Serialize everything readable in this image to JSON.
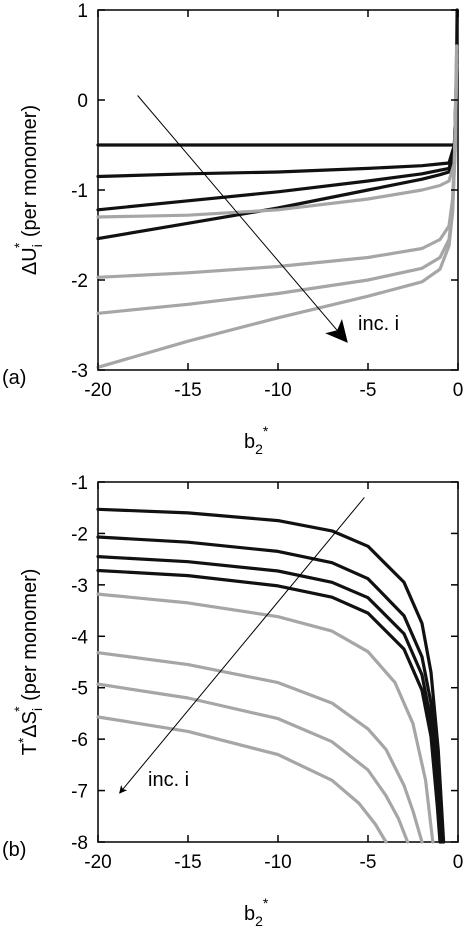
{
  "chart_data": [
    {
      "panel_label": "(a)",
      "type": "line",
      "xlabel": "b2*",
      "ylabel": "ΔUi* (per monomer)",
      "xlim": [
        -20,
        0
      ],
      "ylim": [
        -3,
        1
      ],
      "xticks": [
        "-20",
        "-15",
        "-10",
        "-5",
        "0"
      ],
      "yticks": [
        "-3",
        "-2",
        "-1",
        "0",
        "1"
      ],
      "xtick_values": [
        -20,
        -15,
        -10,
        -5,
        0
      ],
      "ytick_values": [
        -3,
        -2,
        -1,
        0,
        1
      ],
      "annotation": "inc. i",
      "arrow": {
        "from": [
          -17.8,
          0.05
        ],
        "to": [
          -6.2,
          -2.68
        ]
      },
      "colors": {
        "dark": "#111111",
        "light": "#a6a6a6"
      },
      "series": [
        {
          "color": "dark",
          "x": [
            -20,
            -10,
            -5,
            -2,
            -1,
            -0.5,
            -0.2,
            -0.1,
            -0.05
          ],
          "y": [
            -0.5,
            -0.5,
            -0.5,
            -0.5,
            -0.5,
            -0.5,
            -0.5,
            0.0,
            1.0
          ]
        },
        {
          "color": "dark",
          "x": [
            -20,
            -15,
            -10,
            -5,
            -2,
            -1,
            -0.5,
            -0.2,
            -0.08
          ],
          "y": [
            -0.85,
            -0.82,
            -0.8,
            -0.76,
            -0.73,
            -0.71,
            -0.7,
            -0.5,
            0.2
          ]
        },
        {
          "color": "dark",
          "x": [
            -20,
            -15,
            -10,
            -5,
            -2,
            -1,
            -0.5,
            -0.2,
            -0.08
          ],
          "y": [
            -1.22,
            -1.12,
            -1.02,
            -0.9,
            -0.82,
            -0.78,
            -0.76,
            -0.55,
            0.3
          ]
        },
        {
          "color": "dark",
          "x": [
            -20,
            -15,
            -10,
            -5,
            -2,
            -1,
            -0.5,
            -0.2,
            -0.08
          ],
          "y": [
            -1.54,
            -1.37,
            -1.2,
            -1.0,
            -0.88,
            -0.83,
            -0.8,
            -0.6,
            0.4
          ]
        },
        {
          "color": "light",
          "x": [
            -20,
            -15,
            -10,
            -5,
            -2,
            -1,
            -0.5,
            -0.2,
            -0.08
          ],
          "y": [
            -1.3,
            -1.28,
            -1.22,
            -1.1,
            -1.0,
            -0.95,
            -0.9,
            -0.7,
            0.6
          ]
        },
        {
          "color": "light",
          "x": [
            -20,
            -15,
            -10,
            -5,
            -2,
            -1,
            -0.5,
            -0.3,
            -0.15,
            -0.07
          ],
          "y": [
            -1.97,
            -1.92,
            -1.85,
            -1.75,
            -1.65,
            -1.55,
            -1.4,
            -1.1,
            -0.4,
            0.6
          ]
        },
        {
          "color": "light",
          "x": [
            -20,
            -15,
            -10,
            -5,
            -2,
            -1,
            -0.5,
            -0.3,
            -0.15,
            -0.07
          ],
          "y": [
            -2.37,
            -2.27,
            -2.15,
            -2.0,
            -1.87,
            -1.75,
            -1.55,
            -1.2,
            -0.5,
            0.5
          ]
        },
        {
          "color": "light",
          "x": [
            -20,
            -15,
            -10,
            -5,
            -2,
            -1,
            -0.5,
            -0.3,
            -0.15,
            -0.07
          ],
          "y": [
            -2.97,
            -2.68,
            -2.42,
            -2.18,
            -2.02,
            -1.88,
            -1.62,
            -1.25,
            -0.5,
            0.4
          ]
        }
      ]
    },
    {
      "panel_label": "(b)",
      "type": "line",
      "xlabel": "b2*",
      "ylabel": "T*ΔSi* (per monomer)",
      "xlim": [
        -20,
        0
      ],
      "ylim": [
        -8,
        -1
      ],
      "xticks": [
        "-20",
        "-15",
        "-10",
        "-5",
        "0"
      ],
      "yticks": [
        "-8",
        "-7",
        "-6",
        "-5",
        "-4",
        "-3",
        "-2",
        "-1"
      ],
      "xtick_values": [
        -20,
        -15,
        -10,
        -5,
        0
      ],
      "ytick_values": [
        -8,
        -7,
        -6,
        -5,
        -4,
        -3,
        -2,
        -1
      ],
      "annotation": "inc. i",
      "arrow": {
        "from": [
          -5.2,
          -1.3
        ],
        "to": [
          -18.8,
          -7.05
        ]
      },
      "colors": {
        "dark": "#111111",
        "light": "#a6a6a6"
      },
      "series": [
        {
          "color": "dark",
          "x": [
            -20,
            -15,
            -10,
            -7,
            -5,
            -3,
            -2,
            -1.5,
            -1.1,
            -0.8
          ],
          "y": [
            -1.53,
            -1.6,
            -1.75,
            -1.95,
            -2.25,
            -2.95,
            -3.75,
            -4.7,
            -6.2,
            -8.0
          ]
        },
        {
          "color": "dark",
          "x": [
            -20,
            -15,
            -10,
            -7,
            -5,
            -3,
            -2,
            -1.5,
            -1.1,
            -0.9
          ],
          "y": [
            -2.07,
            -2.17,
            -2.35,
            -2.57,
            -2.88,
            -3.6,
            -4.4,
            -5.3,
            -6.8,
            -8.0
          ]
        },
        {
          "color": "dark",
          "x": [
            -20,
            -15,
            -10,
            -7,
            -5,
            -3,
            -2,
            -1.5,
            -1.1,
            -0.95
          ],
          "y": [
            -2.45,
            -2.55,
            -2.73,
            -2.95,
            -3.25,
            -3.95,
            -4.75,
            -5.65,
            -7.1,
            -8.0
          ]
        },
        {
          "color": "dark",
          "x": [
            -20,
            -15,
            -10,
            -7,
            -5,
            -3,
            -2,
            -1.5,
            -1.15,
            -1.0
          ],
          "y": [
            -2.72,
            -2.82,
            -3.02,
            -3.24,
            -3.55,
            -4.25,
            -5.05,
            -5.95,
            -7.3,
            -8.0
          ]
        },
        {
          "color": "light",
          "x": [
            -20,
            -15,
            -10,
            -7,
            -5,
            -3.5,
            -2.5,
            -1.8,
            -1.4
          ],
          "y": [
            -3.18,
            -3.35,
            -3.62,
            -3.9,
            -4.3,
            -4.9,
            -5.7,
            -6.8,
            -8.0
          ]
        },
        {
          "color": "light",
          "x": [
            -20,
            -15,
            -10,
            -7,
            -5,
            -4,
            -3,
            -2.5,
            -2.0
          ],
          "y": [
            -4.32,
            -4.55,
            -4.9,
            -5.3,
            -5.8,
            -6.2,
            -6.9,
            -7.4,
            -8.0
          ]
        },
        {
          "color": "light",
          "x": [
            -20,
            -15,
            -10,
            -7,
            -5,
            -4,
            -3.3,
            -2.8
          ],
          "y": [
            -4.93,
            -5.2,
            -5.6,
            -6.05,
            -6.6,
            -7.1,
            -7.55,
            -8.0
          ]
        },
        {
          "color": "light",
          "x": [
            -20,
            -15,
            -10,
            -7,
            -5.5,
            -4.6,
            -4.0
          ],
          "y": [
            -5.57,
            -5.85,
            -6.3,
            -6.8,
            -7.25,
            -7.65,
            -8.0
          ]
        }
      ]
    }
  ]
}
